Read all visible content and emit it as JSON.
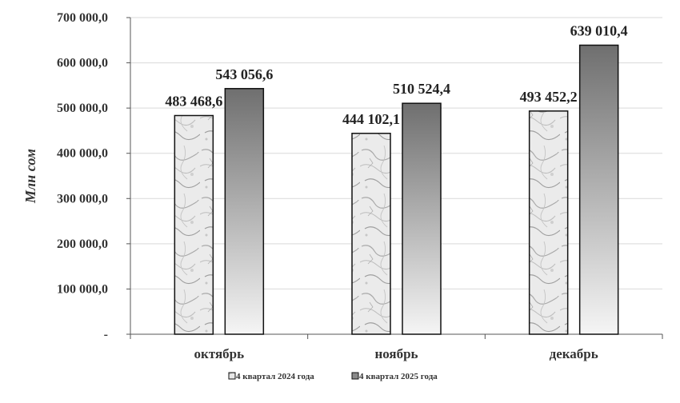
{
  "chart_data": {
    "type": "bar",
    "categories": [
      "октябрь",
      "ноябрь",
      "декабрь"
    ],
    "series": [
      {
        "name": "4 квартал 2024 года",
        "values": [
          483468.6,
          444102.1,
          493452.2
        ],
        "labels": [
          "483 468,6",
          "444 102,1",
          "493 452,2"
        ]
      },
      {
        "name": "4 квартал 2025 года",
        "values": [
          543056.6,
          510524.4,
          639010.4
        ],
        "labels": [
          "543 056,6",
          "510 524,4",
          "639 010,4"
        ]
      }
    ],
    "ylabel": "Млн сом",
    "ylim": [
      0,
      700000
    ],
    "yticks": [
      0,
      100000,
      200000,
      300000,
      400000,
      500000,
      600000,
      700000
    ],
    "ytick_labels": [
      "-",
      "100 000,0",
      "200 000,0",
      "300 000,0",
      "400 000,0",
      "500 000,0",
      "600 000,0",
      "700 000,0"
    ],
    "grid": true,
    "legend_position": "bottom"
  }
}
